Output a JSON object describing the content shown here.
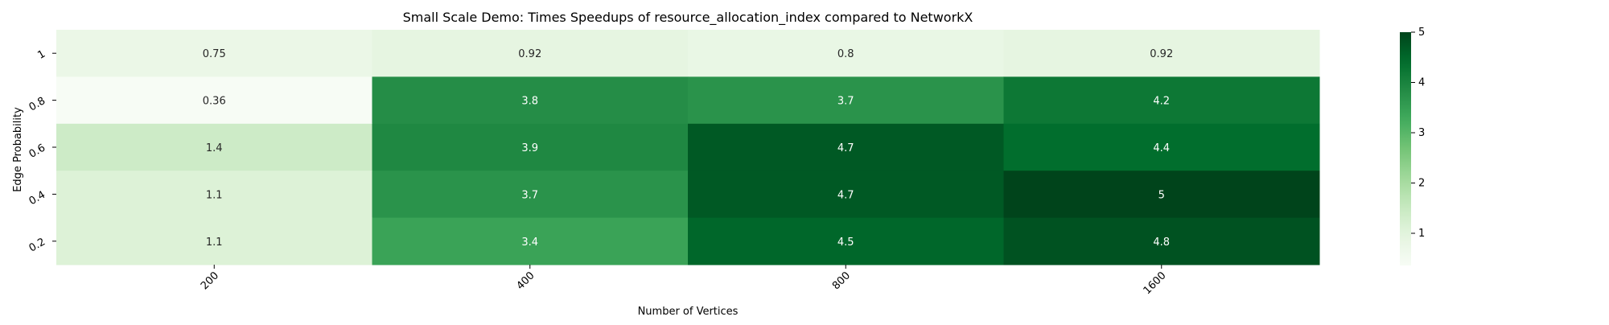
{
  "chart_data": {
    "type": "heatmap",
    "title": "Small Scale Demo: Times Speedups of resource_allocation_index compared to NetworkX",
    "xlabel": "Number of Vertices",
    "ylabel": "Edge Probability",
    "x_categories": [
      "200",
      "400",
      "800",
      "1600"
    ],
    "y_categories": [
      "1",
      "0.8",
      "0.6",
      "0.4",
      "0.2"
    ],
    "values": [
      [
        0.75,
        0.92,
        0.8,
        0.92
      ],
      [
        0.36,
        3.8,
        3.7,
        4.2
      ],
      [
        1.4,
        3.9,
        4.7,
        4.4
      ],
      [
        1.1,
        3.7,
        4.7,
        5
      ],
      [
        1.1,
        3.4,
        4.5,
        4.8
      ]
    ],
    "colormap": "Greens",
    "color_range": [
      0.36,
      5
    ],
    "colorbar_ticks": [
      1,
      2,
      3,
      4,
      5
    ],
    "annotated": true,
    "grid": false,
    "legend": "colorbar-right"
  }
}
